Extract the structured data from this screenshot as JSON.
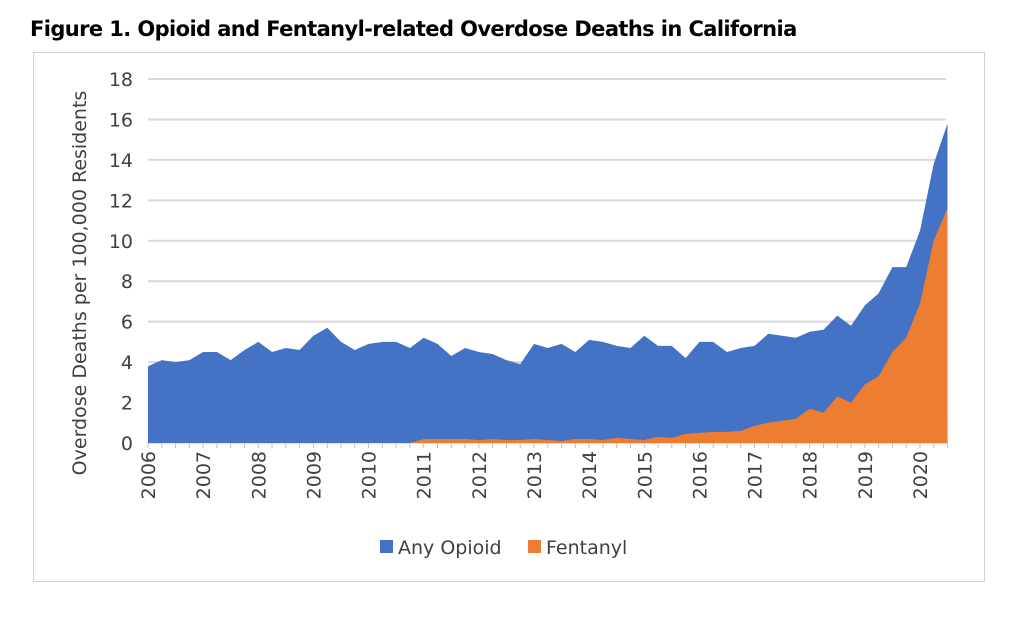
{
  "title": "Figure 1. Opioid and Fentanyl-related Overdose Deaths in California",
  "chart_data": {
    "type": "area",
    "title": "Figure 1. Opioid and Fentanyl-related Overdose Deaths in California",
    "xlabel": "",
    "ylabel": "Overdose Deaths per 100,000 Residents",
    "ylim": [
      0,
      18
    ],
    "yticks": [
      "0",
      "2",
      "4",
      "6",
      "8",
      "10",
      "12",
      "14",
      "16",
      "18"
    ],
    "xticks": [
      "2006",
      "2007",
      "2008",
      "2009",
      "2010",
      "2011",
      "2012",
      "2013",
      "2014",
      "2015",
      "2016",
      "2017",
      "2018",
      "2019",
      "2020"
    ],
    "x_frequency": "quarterly, 2006 Q1 – 2020 Q3",
    "grid": true,
    "legend_position": "bottom",
    "series": [
      {
        "name": "Any Opioid",
        "color": "#4472C4",
        "values": [
          3.8,
          4.1,
          4.0,
          4.1,
          4.5,
          4.5,
          4.1,
          4.6,
          5.0,
          4.5,
          4.7,
          4.6,
          5.3,
          5.7,
          5.0,
          4.6,
          4.9,
          5.0,
          5.0,
          4.7,
          5.2,
          4.9,
          4.3,
          4.7,
          4.5,
          4.4,
          4.1,
          3.9,
          4.9,
          4.7,
          4.9,
          4.5,
          5.1,
          5.0,
          4.8,
          4.7,
          5.3,
          4.8,
          4.8,
          4.2,
          5.0,
          5.0,
          4.5,
          4.7,
          4.8,
          5.4,
          5.3,
          5.2,
          5.5,
          5.6,
          6.3,
          5.8,
          6.8,
          7.4,
          8.7,
          8.7,
          10.5,
          13.8,
          15.8
        ]
      },
      {
        "name": "Fentanyl",
        "color": "#ED7D31",
        "values": [
          0,
          0,
          0,
          0,
          0,
          0,
          0,
          0,
          0,
          0,
          0,
          0,
          0,
          0,
          0,
          0,
          0,
          0,
          0,
          0,
          0.2,
          0.2,
          0.2,
          0.2,
          0.15,
          0.2,
          0.15,
          0.15,
          0.2,
          0.15,
          0.1,
          0.2,
          0.2,
          0.15,
          0.25,
          0.2,
          0.15,
          0.3,
          0.25,
          0.45,
          0.5,
          0.55,
          0.55,
          0.6,
          0.85,
          1.0,
          1.1,
          1.2,
          1.7,
          1.5,
          2.3,
          2.0,
          2.9,
          3.3,
          4.5,
          5.2,
          6.9,
          10.0,
          11.6
        ]
      }
    ]
  }
}
